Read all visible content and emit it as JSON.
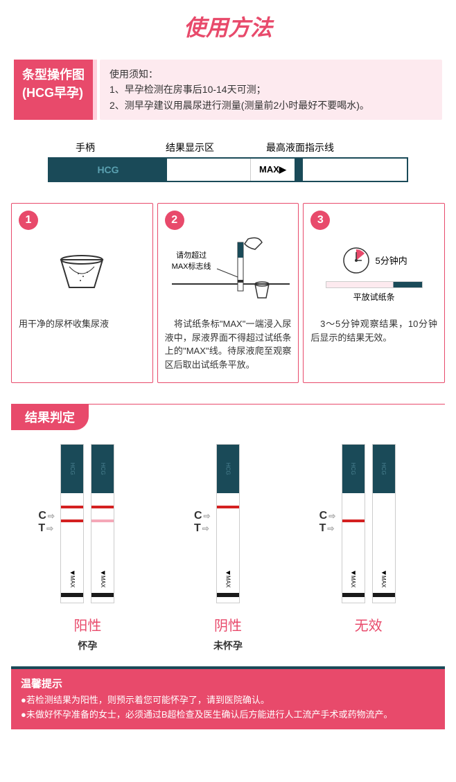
{
  "title": "使用方法",
  "header": {
    "badge_line1": "条型操作图",
    "badge_line2": "(HCG早孕)",
    "info_title": "使用须知：",
    "info_1": "1、早孕检测在房事后10-14天可测；",
    "info_2": "2、测早孕建议用晨尿进行测量(测量前2小时最好不要喝水)。"
  },
  "strip": {
    "label_handle": "手柄",
    "label_result": "结果显示区",
    "label_max": "最高液面指示线",
    "handle_text": "HCG",
    "max_text": "MAX▶"
  },
  "steps": [
    {
      "num": "1",
      "text": "用干净的尿杯收集尿液"
    },
    {
      "num": "2",
      "text": "　将试纸条标\"MAX\"一端浸入尿液中，尿液界面不得超过试纸条上的\"MAX\"线。待尿液爬至观察区后取出试纸条平放。",
      "dip_label": "请勿超过\nMAX标志线"
    },
    {
      "num": "3",
      "text": "　3～5分钟观察结果，10分钟后显示的结果无效。",
      "time_label": "5分钟内",
      "flat_label": "平放试纸条"
    }
  ],
  "results": {
    "tab": "结果判定",
    "c_label": "C",
    "t_label": "T",
    "hcg": "HCG",
    "max": "◀MAX",
    "groups": [
      {
        "name": "阳性",
        "sub": "怀孕",
        "strips": [
          {
            "c": "line-c",
            "t": "line-t-strong"
          },
          {
            "c": "line-c",
            "t": "line-t-weak"
          }
        ]
      },
      {
        "name": "阴性",
        "sub": "未怀孕",
        "strips": [
          {
            "c": "line-c",
            "t": "line-none"
          }
        ]
      },
      {
        "name": "无效",
        "sub": "",
        "strips": [
          {
            "c": "line-none",
            "t": "line-t-strong"
          },
          {
            "c": "line-none",
            "t": "line-none"
          }
        ]
      }
    ]
  },
  "warm": {
    "title": "温馨提示",
    "p1": "●若检测结果为阳性，则预示着您可能怀孕了，请到医院确认。",
    "p2": "●未做好怀孕准备的女士，必须通过B超检查及医生确认后方能进行人工流产手术或药物流产。"
  },
  "colors": {
    "brand": "#e84a6b",
    "brand_light": "#fdeaef",
    "strip_dark": "#1a4a58",
    "red_line": "#d42020",
    "weak_line": "#f5a8b8"
  }
}
